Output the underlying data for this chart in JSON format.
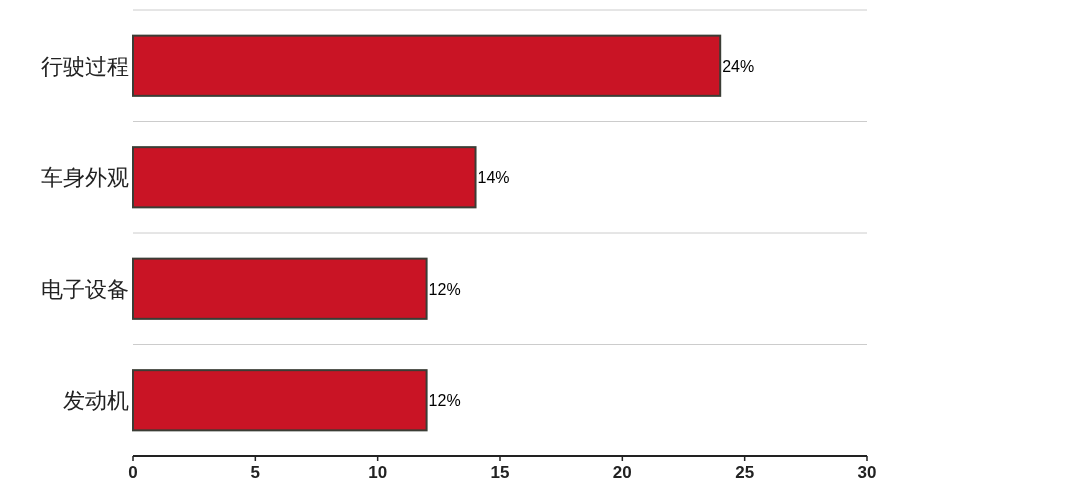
{
  "chart_data": {
    "type": "bar",
    "orientation": "horizontal",
    "categories": [
      "行驶过程",
      "车身外观",
      "电子设备",
      "发动机"
    ],
    "values": [
      24,
      14,
      12,
      12
    ],
    "value_labels": [
      "24%",
      "14%",
      "12%",
      "12%"
    ],
    "color": "#c91425",
    "xlim": [
      0,
      30
    ],
    "xticks": [
      0,
      5,
      10,
      15,
      20,
      25,
      30
    ],
    "grid": "y"
  }
}
